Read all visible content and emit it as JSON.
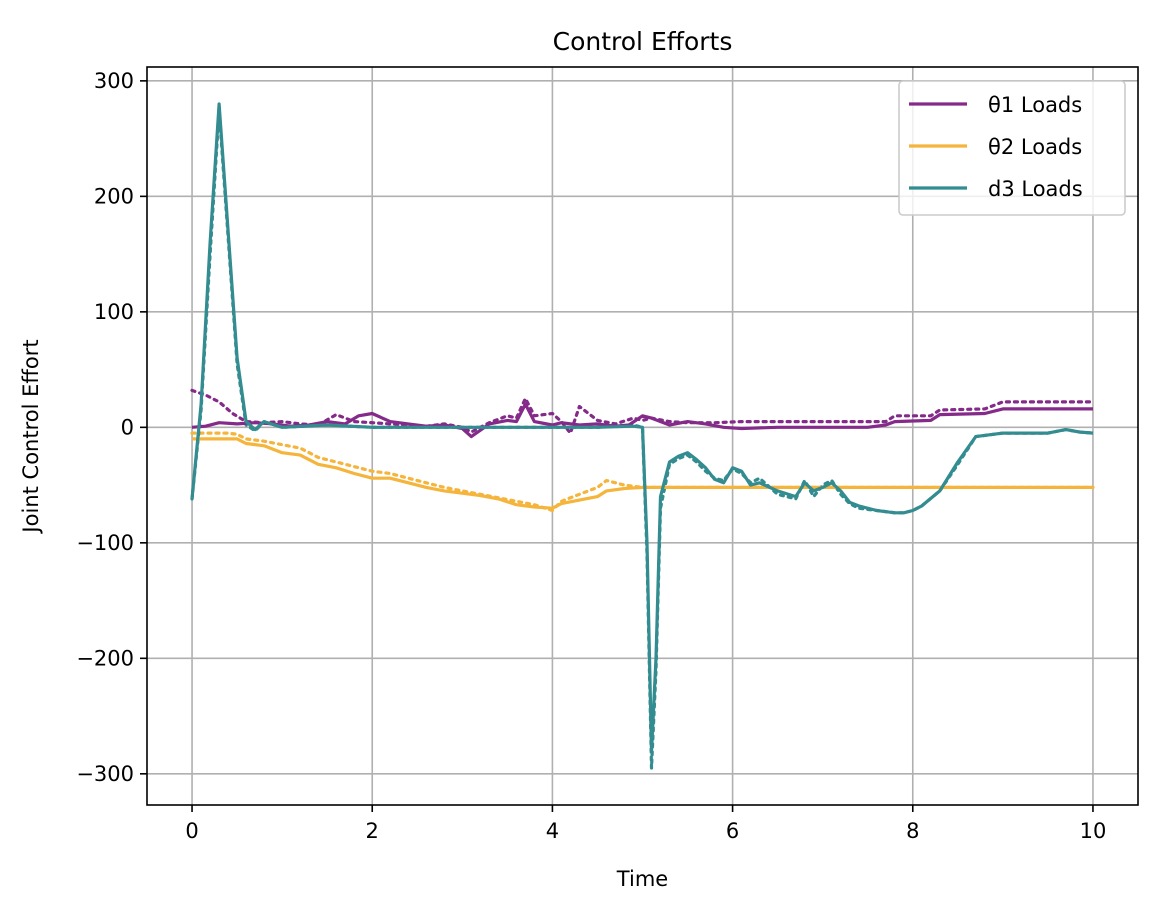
{
  "chart_data": {
    "type": "line",
    "title": "Control Efforts",
    "xlabel": "Time",
    "ylabel": "Joint Control Effort",
    "xlim": [
      -0.5,
      10.5
    ],
    "ylim": [
      -327,
      312
    ],
    "xticks": [
      0,
      2,
      4,
      6,
      8,
      10
    ],
    "xtick_labels": [
      "0",
      "2",
      "4",
      "6",
      "8",
      "10"
    ],
    "yticks": [
      -300,
      -200,
      -100,
      0,
      100,
      200,
      300
    ],
    "ytick_labels": [
      "−300",
      "−200",
      "−100",
      "0",
      "100",
      "200",
      "300"
    ],
    "grid": true,
    "legend_position": "top-right",
    "series": [
      {
        "name": "θ1 Loads",
        "color": "#842b8a",
        "style": "solid",
        "x": [
          0,
          0.15,
          0.3,
          0.5,
          0.7,
          0.9,
          1.1,
          1.3,
          1.5,
          1.7,
          1.85,
          2.0,
          2.2,
          2.4,
          2.6,
          2.8,
          3.0,
          3.1,
          3.3,
          3.5,
          3.6,
          3.7,
          3.8,
          4.0,
          4.1,
          4.3,
          4.5,
          4.7,
          4.85,
          5.0,
          5.1,
          5.3,
          5.5,
          5.7,
          5.9,
          6.1,
          6.5,
          7.0,
          7.5,
          7.7,
          7.8,
          8.2,
          8.3,
          8.8,
          9.0,
          9.5,
          10.0
        ],
        "y": [
          0,
          1,
          4,
          3,
          4,
          3,
          1,
          2,
          5,
          3,
          10,
          12,
          5,
          3,
          1,
          2,
          -1,
          -8,
          3,
          6,
          5,
          20,
          5,
          2,
          4,
          2,
          3,
          1,
          2,
          10,
          8,
          2,
          5,
          3,
          0,
          -1,
          0,
          0,
          0,
          2,
          5,
          6,
          11,
          12,
          16,
          16,
          16
        ]
      },
      {
        "name": "",
        "color": "#842b8a",
        "style": "dotted",
        "x": [
          0,
          0.15,
          0.3,
          0.45,
          0.6,
          0.8,
          1.0,
          1.2,
          1.4,
          1.6,
          1.8,
          2.0,
          2.2,
          2.4,
          2.6,
          2.8,
          3.0,
          3.1,
          3.3,
          3.5,
          3.6,
          3.7,
          3.8,
          4.0,
          4.1,
          4.2,
          4.3,
          4.5,
          4.7,
          4.9,
          5.0,
          5.1,
          5.3,
          5.5,
          5.8,
          6.1,
          6.5,
          7.0,
          7.5,
          7.7,
          7.8,
          8.2,
          8.3,
          8.8,
          9.0,
          9.5,
          10.0
        ],
        "y": [
          32,
          28,
          22,
          12,
          5,
          4,
          5,
          3,
          2,
          11,
          5,
          4,
          3,
          2,
          1,
          3,
          0,
          -4,
          4,
          10,
          8,
          25,
          10,
          12,
          5,
          -5,
          18,
          6,
          3,
          8,
          6,
          8,
          5,
          4,
          4,
          5,
          5,
          5,
          5,
          5,
          10,
          10,
          15,
          16,
          22,
          22,
          22
        ]
      },
      {
        "name": "θ2 Loads",
        "color": "#f5b53c",
        "style": "solid",
        "x": [
          0,
          0.2,
          0.4,
          0.5,
          0.6,
          0.8,
          1.0,
          1.2,
          1.4,
          1.6,
          1.8,
          2.0,
          2.2,
          2.4,
          2.6,
          2.8,
          3.0,
          3.2,
          3.4,
          3.6,
          3.8,
          4.0,
          4.1,
          4.3,
          4.5,
          4.6,
          4.8,
          5.0,
          5.5,
          6.0,
          7.0,
          8.0,
          9.0,
          10.0
        ],
        "y": [
          -10,
          -10,
          -10,
          -10,
          -14,
          -16,
          -22,
          -24,
          -32,
          -35,
          -40,
          -44,
          -44,
          -48,
          -52,
          -55,
          -57,
          -59,
          -62,
          -67,
          -69,
          -70,
          -66,
          -63,
          -60,
          -55,
          -53,
          -52,
          -52,
          -52,
          -52,
          -52,
          -52,
          -52
        ]
      },
      {
        "name": "",
        "color": "#f5b53c",
        "style": "dotted",
        "x": [
          0,
          0.2,
          0.4,
          0.5,
          0.6,
          0.8,
          1.0,
          1.2,
          1.4,
          1.6,
          1.8,
          2.0,
          2.2,
          2.4,
          2.6,
          2.8,
          3.0,
          3.2,
          3.4,
          3.6,
          3.8,
          4.0,
          4.1,
          4.3,
          4.5,
          4.6,
          4.8,
          5.0,
          5.5,
          6.0,
          7.0,
          8.0,
          9.0,
          10.0
        ],
        "y": [
          -5,
          -5,
          -5,
          -6,
          -10,
          -12,
          -15,
          -18,
          -26,
          -30,
          -34,
          -38,
          -40,
          -44,
          -48,
          -52,
          -55,
          -58,
          -61,
          -64,
          -67,
          -72,
          -64,
          -58,
          -52,
          -46,
          -50,
          -52,
          -52,
          -52,
          -52,
          -52,
          -52,
          -52
        ]
      },
      {
        "name": "d3 Loads",
        "color": "#328c90",
        "style": "solid",
        "x": [
          0,
          0.1,
          0.2,
          0.3,
          0.4,
          0.5,
          0.6,
          0.7,
          0.8,
          1.0,
          1.5,
          2.0,
          2.5,
          3.0,
          3.5,
          4.0,
          4.5,
          4.9,
          5.0,
          5.05,
          5.1,
          5.15,
          5.2,
          5.3,
          5.4,
          5.5,
          5.6,
          5.7,
          5.8,
          5.9,
          6.0,
          6.1,
          6.2,
          6.3,
          6.5,
          6.7,
          6.8,
          6.9,
          7.0,
          7.1,
          7.2,
          7.3,
          7.4,
          7.6,
          7.8,
          7.9,
          8.0,
          8.1,
          8.3,
          8.5,
          8.7,
          9.0,
          9.5,
          9.7,
          9.85,
          10.0
        ],
        "y": [
          -62,
          20,
          160,
          280,
          170,
          60,
          5,
          -2,
          5,
          0,
          2,
          0,
          0,
          0,
          0,
          0,
          0,
          1,
          0,
          -100,
          -280,
          -200,
          -60,
          -30,
          -25,
          -22,
          -28,
          -35,
          -45,
          -48,
          -35,
          -38,
          -50,
          -48,
          -55,
          -60,
          -48,
          -55,
          -52,
          -48,
          -55,
          -65,
          -68,
          -72,
          -74,
          -74,
          -72,
          -68,
          -55,
          -30,
          -8,
          -5,
          -5,
          -2,
          -4,
          -5
        ]
      },
      {
        "name": "",
        "color": "#328c90",
        "style": "dotted",
        "x": [
          0,
          0.1,
          0.2,
          0.3,
          0.4,
          0.5,
          0.6,
          0.7,
          0.8,
          1.0,
          1.5,
          2.0,
          2.5,
          3.0,
          3.5,
          4.0,
          4.5,
          4.9,
          5.0,
          5.05,
          5.1,
          5.15,
          5.2,
          5.3,
          5.4,
          5.5,
          5.6,
          5.7,
          5.8,
          5.9,
          6.0,
          6.1,
          6.2,
          6.3,
          6.5,
          6.7,
          6.8,
          6.9,
          7.0,
          7.1,
          7.2,
          7.3,
          7.4,
          7.6,
          7.8,
          7.9,
          8.0,
          8.1,
          8.3,
          8.5,
          8.7,
          9.0,
          9.5,
          9.7,
          9.85,
          10.0
        ],
        "y": [
          -62,
          15,
          150,
          275,
          165,
          55,
          2,
          -3,
          5,
          0,
          2,
          0,
          0,
          0,
          0,
          0,
          0,
          2,
          0,
          -110,
          -295,
          -210,
          -70,
          -32,
          -27,
          -24,
          -30,
          -38,
          -44,
          -46,
          -36,
          -40,
          -48,
          -44,
          -58,
          -62,
          -46,
          -60,
          -50,
          -46,
          -58,
          -66,
          -70,
          -72,
          -74,
          -74,
          -72,
          -68,
          -55,
          -32,
          -8,
          -5,
          -5,
          -2,
          -4,
          -5
        ]
      }
    ]
  }
}
